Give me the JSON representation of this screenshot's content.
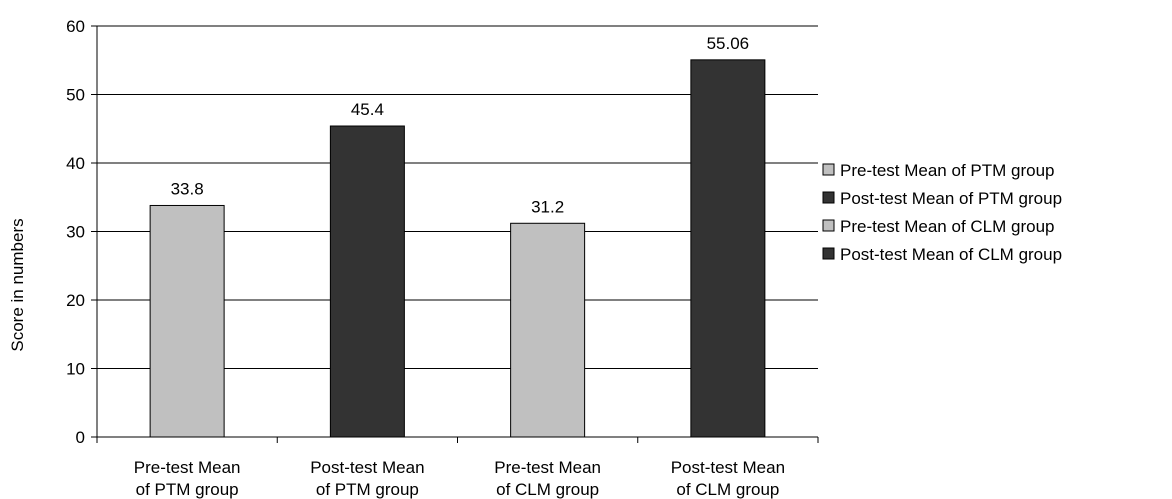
{
  "chart_data": {
    "type": "bar",
    "categories": [
      [
        "Pre-test Mean",
        "of PTM group"
      ],
      [
        "Post-test Mean",
        "of PTM group"
      ],
      [
        "Pre-test Mean",
        "of CLM group"
      ],
      [
        "Post-test Mean",
        "of CLM group"
      ]
    ],
    "values": [
      33.8,
      45.4,
      31.2,
      55.06
    ],
    "value_labels": [
      "33.8",
      "45.4",
      "31.2",
      "55.06"
    ],
    "bar_colors": [
      "#c0c0c0",
      "#333333",
      "#c0c0c0",
      "#333333"
    ],
    "ylabel": "Score in numbers",
    "xlabel": "",
    "ylim": [
      0,
      60
    ],
    "yticks": [
      0,
      10,
      20,
      30,
      40,
      50,
      60
    ],
    "grid": true,
    "legend": {
      "placement": "right",
      "entries": [
        {
          "label": "Pre-test Mean of PTM group",
          "color": "#c0c0c0"
        },
        {
          "label": "Post-test Mean of PTM group",
          "color": "#333333"
        },
        {
          "label": "Pre-test Mean of CLM group",
          "color": "#c0c0c0"
        },
        {
          "label": "Post-test Mean of CLM group",
          "color": "#333333"
        }
      ]
    }
  }
}
